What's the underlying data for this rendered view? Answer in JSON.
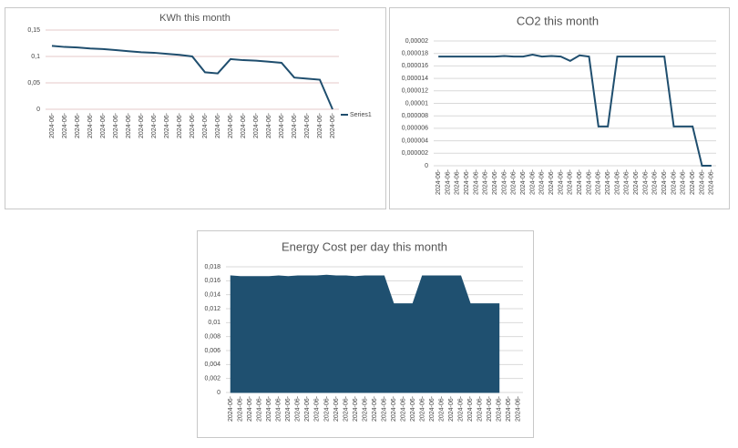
{
  "chart_data": [
    {
      "type": "line",
      "title": "KWh this month",
      "categories": [
        "2024-06-",
        "2024-06-",
        "2024-06-",
        "2024-06-",
        "2024-06-",
        "2024-06-",
        "2024-06-",
        "2024-06-",
        "2024-06-",
        "2024-06-",
        "2024-06-",
        "2024-06-",
        "2024-06-",
        "2024-06-",
        "2024-06-",
        "2024-06-",
        "2024-06-",
        "2024-06-",
        "2024-06-",
        "2024-06-",
        "2024-06-",
        "2024-06-",
        "2024-06-"
      ],
      "series": [
        {
          "name": "Series1",
          "color": "#1f4e6e",
          "values": [
            0.12,
            0.118,
            0.117,
            0.115,
            0.114,
            0.112,
            0.11,
            0.108,
            0.107,
            0.105,
            0.103,
            0.1,
            0.07,
            0.068,
            0.095,
            0.093,
            0.092,
            0.09,
            0.088,
            0.06,
            0.058,
            0.056,
            0
          ]
        }
      ],
      "ylim": [
        0,
        0.15
      ],
      "yticks": [
        0,
        {
          "value": 0.05,
          "label": "0,05"
        },
        {
          "value": 0.1,
          "label": "0,1"
        },
        {
          "value": 0.15,
          "label": "0,15"
        }
      ],
      "grid": true,
      "legend": "right"
    },
    {
      "type": "line",
      "title": "CO2 this month",
      "categories": [
        "2024-06-",
        "2024-06-",
        "2024-06-",
        "2024-06-",
        "2024-06-",
        "2024-06-",
        "2024-06-",
        "2024-06-",
        "2024-06-",
        "2024-06-",
        "2024-06-",
        "2024-06-",
        "2024-06-",
        "2024-06-",
        "2024-06-",
        "2024-06-",
        "2024-06-",
        "2024-06-",
        "2024-06-",
        "2024-06-",
        "2024-06-",
        "2024-06-",
        "2024-06-",
        "2024-06-",
        "2024-06-",
        "2024-06-",
        "2024-06-",
        "2024-06-",
        "2024-06-",
        "2024-06-"
      ],
      "values": [
        1.75e-05,
        1.75e-05,
        1.75e-05,
        1.75e-05,
        1.75e-05,
        1.75e-05,
        1.75e-05,
        1.76e-05,
        1.75e-05,
        1.75e-05,
        1.78e-05,
        1.75e-05,
        1.76e-05,
        1.75e-05,
        1.68e-05,
        1.77e-05,
        1.75e-05,
        6.3e-06,
        6.3e-06,
        1.75e-05,
        1.75e-05,
        1.75e-05,
        1.75e-05,
        1.75e-05,
        1.75e-05,
        6.3e-06,
        6.3e-06,
        6.3e-06,
        0,
        0
      ],
      "color": "#1f4e6e",
      "ylim": [
        0,
        2e-05
      ],
      "yticks": [
        0,
        {
          "value": 2e-06,
          "label": "0,000002"
        },
        {
          "value": 4e-06,
          "label": "0,000004"
        },
        {
          "value": 6e-06,
          "label": "0,000006"
        },
        {
          "value": 8e-06,
          "label": "0,000008"
        },
        {
          "value": 1e-05,
          "label": "0,00001"
        },
        {
          "value": 1.2e-05,
          "label": "0,000012"
        },
        {
          "value": 1.4e-05,
          "label": "0,000014"
        },
        {
          "value": 1.6e-05,
          "label": "0,000016"
        },
        {
          "value": 1.8e-05,
          "label": "0,000018"
        },
        {
          "value": 2e-05,
          "label": "0,00002"
        }
      ],
      "grid": true
    },
    {
      "type": "area",
      "title": "Energy Cost per day this month",
      "categories": [
        "2024-06-",
        "2024-06-",
        "2024-06-",
        "2024-06-",
        "2024-06-",
        "2024-06-",
        "2024-06-",
        "2024-06-",
        "2024-06-",
        "2024-06-",
        "2024-06-",
        "2024-06-",
        "2024-06-",
        "2024-06-",
        "2024-06-",
        "2024-06-",
        "2024-06-",
        "2024-06-",
        "2024-06-",
        "2024-06-",
        "2024-06-",
        "2024-06-",
        "2024-06-",
        "2024-06-",
        "2024-06-",
        "2024-06-",
        "2024-06-",
        "2024-06-",
        "2024-06-",
        "2024-06-",
        "2024-06-"
      ],
      "values": [
        0.0167,
        0.0166,
        0.0166,
        0.0166,
        0.0166,
        0.0167,
        0.0166,
        0.0167,
        0.0167,
        0.0167,
        0.0168,
        0.0167,
        0.0167,
        0.0166,
        0.0167,
        0.0167,
        0.0167,
        0.0127,
        0.0127,
        0.0127,
        0.0167,
        0.0167,
        0.0167,
        0.0167,
        0.0167,
        0.0127,
        0.0127,
        0.0127,
        0.0127,
        null,
        null
      ],
      "color": "#1f5070",
      "ylim": [
        0,
        0.018
      ],
      "yticks": [
        0,
        {
          "value": 0.002,
          "label": "0,002"
        },
        {
          "value": 0.004,
          "label": "0,004"
        },
        {
          "value": 0.006,
          "label": "0,006"
        },
        {
          "value": 0.008,
          "label": "0,008"
        },
        {
          "value": 0.01,
          "label": "0,01"
        },
        {
          "value": 0.012,
          "label": "0,012"
        },
        {
          "value": 0.014,
          "label": "0,014"
        },
        {
          "value": 0.016,
          "label": "0,016"
        },
        {
          "value": 0.018,
          "label": "0,018"
        }
      ],
      "grid": true
    }
  ]
}
